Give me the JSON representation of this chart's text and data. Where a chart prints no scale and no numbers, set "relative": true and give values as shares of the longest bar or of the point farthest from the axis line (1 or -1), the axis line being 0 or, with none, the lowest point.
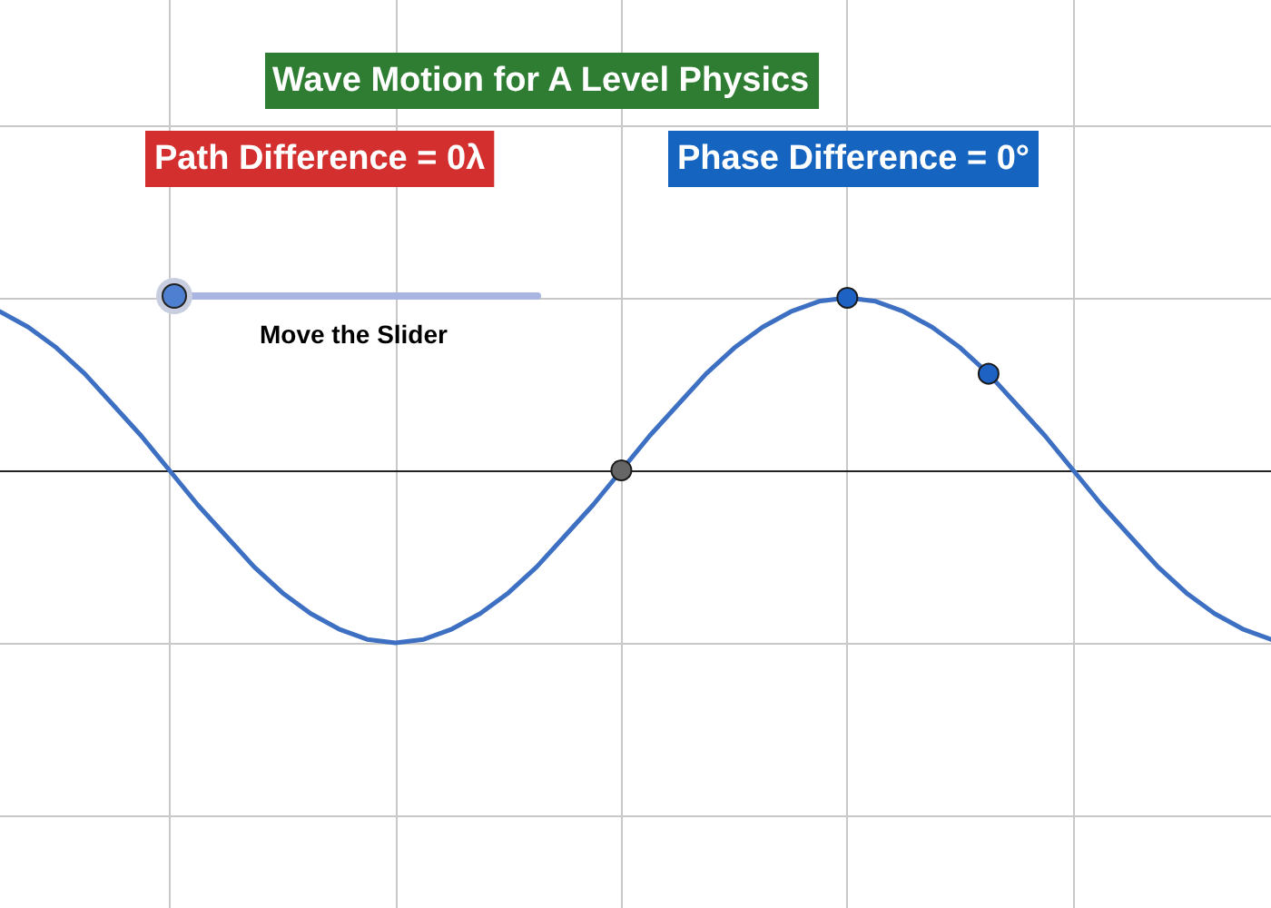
{
  "chart_data": {
    "type": "line",
    "title": "Wave Motion for A Level Physics",
    "relative": true,
    "grid": true,
    "annotations": [
      "Path Difference = 0λ",
      "Phase Difference = 0°",
      "Move the Slider"
    ],
    "categories": [
      null,
      null,
      null,
      null,
      null,
      null,
      null,
      null,
      null,
      null,
      null,
      null,
      null,
      null,
      null,
      null,
      null,
      null,
      null,
      null,
      null,
      null,
      null,
      null,
      null,
      null,
      null,
      null,
      null,
      null,
      null,
      null,
      null,
      null,
      null,
      null,
      null,
      null,
      null,
      null,
      null,
      null,
      null,
      null,
      null,
      null
    ],
    "series": [
      {
        "color": "#3d6fc2",
        "colors": [
          null,
          null,
          null,
          null,
          null,
          null,
          null,
          null,
          null,
          null,
          null,
          null,
          null,
          null,
          null,
          null,
          null,
          null,
          null,
          null,
          null,
          null,
          "#666666",
          null,
          null,
          null,
          null,
          null,
          null,
          null,
          "#1e63c4",
          null,
          null,
          null,
          null,
          "#1e63c4",
          null,
          null,
          null,
          null,
          null,
          null,
          null,
          null,
          null,
          null
        ],
        "values": [
          0.92,
          0.83,
          0.71,
          0.56,
          0.38,
          0.2,
          0,
          -0.2,
          -0.38,
          -0.56,
          -0.71,
          -0.83,
          -0.92,
          -0.98,
          -1,
          -0.98,
          -0.92,
          -0.83,
          -0.71,
          -0.56,
          -0.38,
          -0.2,
          0,
          0.2,
          0.38,
          0.56,
          0.71,
          0.83,
          0.92,
          0.98,
          1,
          0.98,
          0.92,
          0.83,
          0.71,
          0.56,
          0.38,
          0.2,
          0,
          -0.2,
          -0.38,
          -0.56,
          -0.71,
          -0.83,
          -0.92,
          -0.98
        ]
      }
    ]
  }
}
